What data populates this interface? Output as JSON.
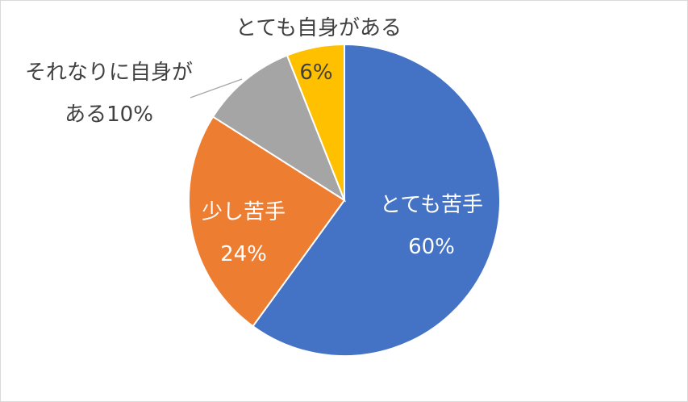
{
  "chart_data": {
    "type": "pie",
    "categories": [
      "とても苦手",
      "少し苦手",
      "それなりに自身がある",
      "とても自身がある"
    ],
    "values": [
      60,
      24,
      10,
      6
    ],
    "value_labels": [
      "60%",
      "24%",
      "10%",
      "6%"
    ],
    "colors": [
      "#4472c4",
      "#ed7d31",
      "#a5a5a5",
      "#ffc000"
    ]
  }
}
